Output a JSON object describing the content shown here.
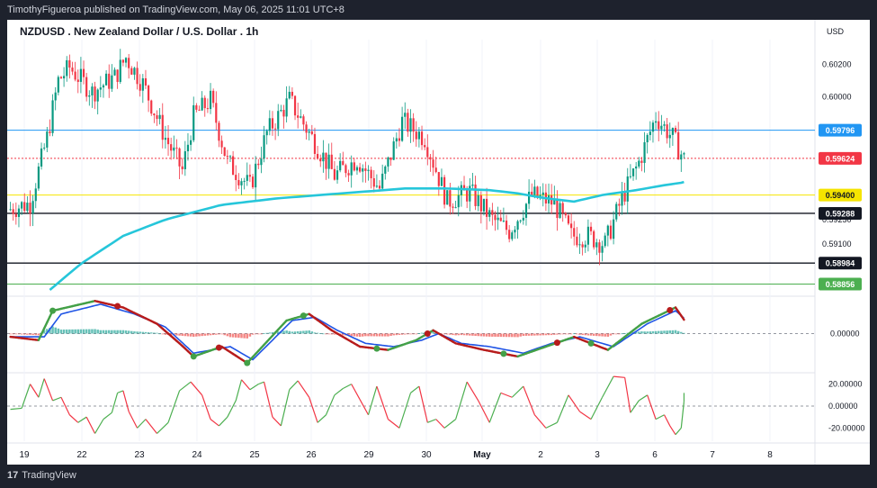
{
  "header": {
    "published": "TimothyFigueroa published on TradingView.com, May 06, 2025 11:01 UTC+8"
  },
  "footer": {
    "logo_mark": "17",
    "logo_text": "TradingView"
  },
  "chart_data": {
    "type": "candlestick",
    "title": "NZDUSD . New Zealand Dollar / U.S. Dollar . 1h",
    "currency": "USD",
    "price_ticks": [
      "0.60200",
      "0.60000",
      "0.59250",
      "0.59100"
    ],
    "price_ylim": [
      0.5882,
      0.6035
    ],
    "x_ticks": [
      {
        "label": "19",
        "bold": false
      },
      {
        "label": "22",
        "bold": false
      },
      {
        "label": "23",
        "bold": false
      },
      {
        "label": "24",
        "bold": false
      },
      {
        "label": "25",
        "bold": false
      },
      {
        "label": "26",
        "bold": false
      },
      {
        "label": "29",
        "bold": false
      },
      {
        "label": "30",
        "bold": false
      },
      {
        "label": "May",
        "bold": true
      },
      {
        "label": "2",
        "bold": false
      },
      {
        "label": "3",
        "bold": false
      },
      {
        "label": "6",
        "bold": false
      },
      {
        "label": "7",
        "bold": false
      },
      {
        "label": "8",
        "bold": false
      }
    ],
    "levels": [
      {
        "label": "0.59796",
        "value": 0.59796,
        "color": "#2196f3",
        "line": "solid"
      },
      {
        "label": "0.59624",
        "value": 0.59624,
        "color": "#f23645",
        "line": "dotted"
      },
      {
        "label": "0.59400",
        "value": 0.594,
        "color": "#f5e400",
        "line": "solid"
      },
      {
        "label": "0.59288",
        "value": 0.59288,
        "color": "#131722",
        "line": "solid"
      },
      {
        "label": "0.58984",
        "value": 0.58984,
        "color": "#131722",
        "line": "solid"
      },
      {
        "label": "0.58856",
        "value": 0.58856,
        "color": "#4caf50",
        "line": "solid"
      }
    ],
    "candles": {
      "count": 240,
      "start_close": 0.5931,
      "anchors": [
        [
          0,
          0.5931
        ],
        [
          8,
          0.5935
        ],
        [
          14,
          0.5975
        ],
        [
          18,
          0.601
        ],
        [
          22,
          0.6018
        ],
        [
          30,
          0.6003
        ],
        [
          38,
          0.6012
        ],
        [
          42,
          0.6024
        ],
        [
          48,
          0.6008
        ],
        [
          56,
          0.5975
        ],
        [
          62,
          0.5955
        ],
        [
          66,
          0.5988
        ],
        [
          72,
          0.5998
        ],
        [
          78,
          0.596
        ],
        [
          86,
          0.5945
        ],
        [
          92,
          0.5978
        ],
        [
          100,
          0.5998
        ],
        [
          108,
          0.5975
        ],
        [
          116,
          0.5952
        ],
        [
          124,
          0.5962
        ],
        [
          132,
          0.5944
        ],
        [
          140,
          0.5985
        ],
        [
          148,
          0.5975
        ],
        [
          156,
          0.5936
        ],
        [
          164,
          0.5942
        ],
        [
          172,
          0.5925
        ],
        [
          178,
          0.5918
        ],
        [
          186,
          0.594
        ],
        [
          194,
          0.5935
        ],
        [
          200,
          0.5915
        ],
        [
          206,
          0.5915
        ],
        [
          212,
          0.591
        ],
        [
          218,
          0.5938
        ],
        [
          224,
          0.596
        ],
        [
          230,
          0.5988
        ],
        [
          236,
          0.5975
        ],
        [
          240,
          0.5962
        ]
      ],
      "up_color": "#089981",
      "down_color": "#f23645"
    },
    "moving_average": {
      "color": "#26c6da",
      "points": [
        [
          0,
          0.586
        ],
        [
          14,
          0.5882
        ],
        [
          25,
          0.5898
        ],
        [
          40,
          0.5915
        ],
        [
          55,
          0.5925
        ],
        [
          75,
          0.5934
        ],
        [
          95,
          0.5938
        ],
        [
          110,
          0.594
        ],
        [
          125,
          0.5942
        ],
        [
          140,
          0.5944
        ],
        [
          155,
          0.5944
        ],
        [
          170,
          0.5943
        ],
        [
          180,
          0.5941
        ],
        [
          190,
          0.5938
        ],
        [
          200,
          0.5936
        ],
        [
          210,
          0.594
        ],
        [
          222,
          0.5943
        ],
        [
          232,
          0.5946
        ],
        [
          240,
          0.5948
        ]
      ]
    },
    "oscillator_1": {
      "zero_label": "0.00000",
      "fast_up_color": "#43a047",
      "fast_down_color": "#b71c1c",
      "slow_color": "#1e53e5",
      "fast": [
        [
          0,
          -0.1
        ],
        [
          10,
          -0.2
        ],
        [
          15,
          0.7
        ],
        [
          30,
          1.0
        ],
        [
          40,
          0.8
        ],
        [
          52,
          0.3
        ],
        [
          60,
          -0.3
        ],
        [
          65,
          -0.7
        ],
        [
          75,
          -0.4
        ],
        [
          84,
          -0.9
        ],
        [
          98,
          0.4
        ],
        [
          106,
          0.6
        ],
        [
          114,
          0.1
        ],
        [
          124,
          -0.4
        ],
        [
          134,
          -0.5
        ],
        [
          144,
          -0.2
        ],
        [
          150,
          0.1
        ],
        [
          158,
          -0.3
        ],
        [
          168,
          -0.5
        ],
        [
          180,
          -0.7
        ],
        [
          190,
          -0.4
        ],
        [
          200,
          -0.1
        ],
        [
          212,
          -0.5
        ],
        [
          224,
          0.3
        ],
        [
          236,
          0.8
        ],
        [
          240,
          0.3
        ]
      ],
      "slow": [
        [
          0,
          -0.1
        ],
        [
          12,
          -0.1
        ],
        [
          18,
          0.6
        ],
        [
          32,
          0.9
        ],
        [
          44,
          0.6
        ],
        [
          55,
          0.2
        ],
        [
          65,
          -0.6
        ],
        [
          78,
          -0.4
        ],
        [
          86,
          -0.8
        ],
        [
          100,
          0.4
        ],
        [
          108,
          0.5
        ],
        [
          116,
          0.1
        ],
        [
          126,
          -0.3
        ],
        [
          136,
          -0.4
        ],
        [
          146,
          -0.2
        ],
        [
          152,
          0.0
        ],
        [
          160,
          -0.3
        ],
        [
          170,
          -0.4
        ],
        [
          182,
          -0.6
        ],
        [
          192,
          -0.3
        ],
        [
          202,
          -0.1
        ],
        [
          214,
          -0.4
        ],
        [
          226,
          0.3
        ],
        [
          236,
          0.7
        ],
        [
          240,
          0.4
        ]
      ],
      "cross_markers": [
        [
          15,
          -0.1,
          "up"
        ],
        [
          38,
          0.88,
          "down"
        ],
        [
          65,
          -0.6,
          "up"
        ],
        [
          74,
          -0.4,
          "down"
        ],
        [
          84,
          -0.7,
          "up"
        ],
        [
          104,
          0.5,
          "up"
        ],
        [
          130,
          -0.5,
          "up"
        ],
        [
          148,
          0.1,
          "down"
        ],
        [
          175,
          -0.6,
          "up"
        ],
        [
          194,
          -0.1,
          "down"
        ],
        [
          206,
          -0.4,
          "up"
        ],
        [
          234,
          0.8,
          "down"
        ]
      ],
      "ylim": [
        -1.2,
        1.2
      ]
    },
    "oscillator_2": {
      "ticks": [
        "20.00000",
        "0.00000",
        "-20.00000"
      ],
      "ylim": [
        -32,
        32
      ],
      "up_color": "#4caf50",
      "down_color": "#f23645",
      "points": [
        [
          0,
          -3
        ],
        [
          4,
          -2
        ],
        [
          7,
          20
        ],
        [
          10,
          8
        ],
        [
          12,
          25
        ],
        [
          15,
          5
        ],
        [
          18,
          8
        ],
        [
          21,
          -8
        ],
        [
          24,
          -15
        ],
        [
          27,
          -10
        ],
        [
          30,
          -25
        ],
        [
          33,
          -12
        ],
        [
          36,
          -6
        ],
        [
          38,
          12
        ],
        [
          40,
          14
        ],
        [
          42,
          -5
        ],
        [
          45,
          -20
        ],
        [
          48,
          -12
        ],
        [
          52,
          -25
        ],
        [
          56,
          -15
        ],
        [
          60,
          14
        ],
        [
          64,
          22
        ],
        [
          68,
          10
        ],
        [
          71,
          -12
        ],
        [
          74,
          -18
        ],
        [
          77,
          -10
        ],
        [
          80,
          5
        ],
        [
          82,
          24
        ],
        [
          85,
          15
        ],
        [
          88,
          20
        ],
        [
          90,
          22
        ],
        [
          93,
          -10
        ],
        [
          96,
          -18
        ],
        [
          99,
          15
        ],
        [
          102,
          23
        ],
        [
          106,
          8
        ],
        [
          109,
          -15
        ],
        [
          112,
          -8
        ],
        [
          115,
          10
        ],
        [
          118,
          16
        ],
        [
          121,
          20
        ],
        [
          124,
          6
        ],
        [
          127,
          -8
        ],
        [
          130,
          18
        ],
        [
          134,
          -12
        ],
        [
          138,
          -20
        ],
        [
          142,
          12
        ],
        [
          145,
          18
        ],
        [
          148,
          -15
        ],
        [
          151,
          -12
        ],
        [
          154,
          -20
        ],
        [
          158,
          -12
        ],
        [
          162,
          22
        ],
        [
          166,
          5
        ],
        [
          170,
          -15
        ],
        [
          174,
          12
        ],
        [
          178,
          8
        ],
        [
          182,
          18
        ],
        [
          186,
          -8
        ],
        [
          190,
          -20
        ],
        [
          194,
          -15
        ],
        [
          198,
          10
        ],
        [
          202,
          -5
        ],
        [
          206,
          -12
        ],
        [
          210,
          8
        ],
        [
          214,
          27
        ],
        [
          218,
          26
        ],
        [
          220,
          -6
        ],
        [
          223,
          5
        ],
        [
          226,
          10
        ],
        [
          229,
          -12
        ],
        [
          232,
          -8
        ],
        [
          234,
          -18
        ],
        [
          236,
          -26
        ],
        [
          238,
          -20
        ],
        [
          239,
          4
        ],
        [
          240,
          12
        ]
      ]
    }
  }
}
